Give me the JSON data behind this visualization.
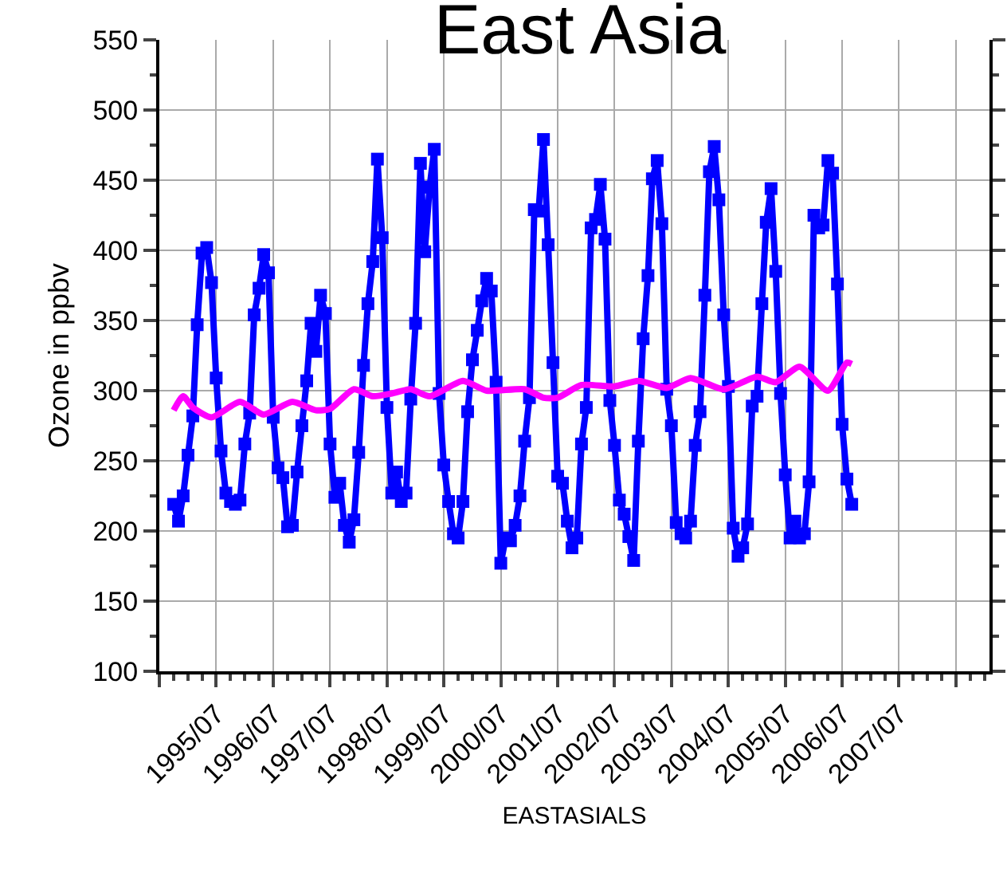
{
  "chart_data": {
    "type": "line",
    "title": "East Asia",
    "xlabel": "EASTASIALS",
    "ylabel": "Ozone in ppbv",
    "xlim": [
      "1994-07",
      "2009-02"
    ],
    "xticks": [
      {
        "value": "1994-07",
        "label": null
      },
      {
        "value": "1995-07",
        "label": "1995/07"
      },
      {
        "value": "1996-07",
        "label": "1996/07"
      },
      {
        "value": "1997-07",
        "label": "1997/07"
      },
      {
        "value": "1998-07",
        "label": "1998/07"
      },
      {
        "value": "1999-07",
        "label": "1999/07"
      },
      {
        "value": "2000-07",
        "label": "2000/07"
      },
      {
        "value": "2001-07",
        "label": "2001/07"
      },
      {
        "value": "2002-07",
        "label": "2002/07"
      },
      {
        "value": "2003-07",
        "label": "2003/07"
      },
      {
        "value": "2004-07",
        "label": "2004/07"
      },
      {
        "value": "2005-07",
        "label": "2005/07"
      },
      {
        "value": "2006-07",
        "label": "2006/07"
      },
      {
        "value": "2007-07",
        "label": "2007/07"
      },
      {
        "value": "2008-07",
        "label": null
      }
    ],
    "ylim": [
      100,
      550
    ],
    "yticks": [
      100,
      150,
      200,
      250,
      300,
      350,
      400,
      450,
      500,
      550
    ],
    "grid": true,
    "line_style": "solid",
    "series": [
      {
        "color": "#0000ff",
        "marker": "square",
        "x": [
          "1994-10",
          "1994-11",
          "1994-12",
          "1995-01",
          "1995-02",
          "1995-03",
          "1995-04",
          "1995-05",
          "1995-06",
          "1995-07",
          "1995-08",
          "1995-09",
          "1995-10",
          "1995-11",
          "1995-12",
          "1996-01",
          "1996-02",
          "1996-03",
          "1996-04",
          "1996-05",
          "1996-06",
          "1996-07",
          "1996-08",
          "1996-09",
          "1996-10",
          "1996-11",
          "1996-12",
          "1997-01",
          "1997-02",
          "1997-03",
          "1997-04",
          "1997-05",
          "1997-06",
          "1997-07",
          "1997-08",
          "1997-09",
          "1997-10",
          "1997-11",
          "1997-12",
          "1998-01",
          "1998-02",
          "1998-03",
          "1998-04",
          "1998-05",
          "1998-06",
          "1998-07",
          "1998-08",
          "1998-09",
          "1998-10",
          "1998-11",
          "1998-12",
          "1999-01",
          "1999-02",
          "1999-03",
          "1999-04",
          "1999-05",
          "1999-06",
          "1999-07",
          "1999-08",
          "1999-09",
          "1999-10",
          "1999-11",
          "1999-12",
          "2000-01",
          "2000-02",
          "2000-03",
          "2000-04",
          "2000-05",
          "2000-06",
          "2000-07",
          "2000-08",
          "2000-09",
          "2000-10",
          "2000-11",
          "2000-12",
          "2001-01",
          "2001-02",
          "2001-03",
          "2001-04",
          "2001-05",
          "2001-06",
          "2001-07",
          "2001-08",
          "2001-09",
          "2001-10",
          "2001-11",
          "2001-12",
          "2002-01",
          "2002-02",
          "2002-03",
          "2002-04",
          "2002-05",
          "2002-06",
          "2002-07",
          "2002-08",
          "2002-09",
          "2002-10",
          "2002-11",
          "2002-12",
          "2003-01",
          "2003-02",
          "2003-03",
          "2003-04",
          "2003-05",
          "2003-06",
          "2003-07",
          "2003-08",
          "2003-09",
          "2003-10",
          "2003-11",
          "2003-12",
          "2004-01",
          "2004-02",
          "2004-03",
          "2004-04",
          "2004-05",
          "2004-06",
          "2004-07",
          "2004-08",
          "2004-09",
          "2004-10",
          "2004-11",
          "2004-12",
          "2005-01",
          "2005-02",
          "2005-03",
          "2005-04",
          "2005-05",
          "2005-06",
          "2005-07",
          "2005-08",
          "2005-09",
          "2005-10",
          "2005-11",
          "2005-12",
          "2006-01",
          "2006-02",
          "2006-03",
          "2006-04",
          "2006-05",
          "2006-06",
          "2006-07",
          "2006-08",
          "2006-09"
        ],
        "values": [
          219,
          207,
          225,
          254,
          282,
          347,
          398,
          402,
          377,
          309,
          257,
          227,
          221,
          219,
          222,
          262,
          284,
          354,
          373,
          397,
          384,
          281,
          245,
          238,
          203,
          204,
          242,
          275,
          307,
          348,
          328,
          368,
          355,
          262,
          224,
          234,
          204,
          192,
          208,
          256,
          318,
          362,
          392,
          465,
          409,
          288,
          227,
          242,
          221,
          227,
          294,
          348,
          462,
          399,
          445,
          472,
          298,
          247,
          221,
          198,
          195,
          221,
          285,
          322,
          343,
          364,
          380,
          371,
          306,
          177,
          195,
          193,
          204,
          225,
          264,
          295,
          429,
          428,
          479,
          404,
          320,
          239,
          234,
          207,
          188,
          195,
          262,
          288,
          416,
          422,
          447,
          408,
          293,
          261,
          222,
          212,
          196,
          179,
          264,
          337,
          382,
          451,
          464,
          419,
          301,
          275,
          206,
          198,
          195,
          207,
          261,
          285,
          368,
          456,
          474,
          436,
          354,
          303,
          202,
          182,
          188,
          205,
          289,
          296,
          362,
          420,
          444,
          385,
          298,
          240,
          195,
          207,
          195,
          198,
          235,
          425,
          416,
          418,
          464,
          455,
          376,
          276,
          237,
          219
        ]
      },
      {
        "color": "#ff00ff",
        "marker": "none",
        "x": [
          "1994-10",
          "1994-12",
          "1995-02",
          "1995-06",
          "1995-12",
          "1996-05",
          "1996-11",
          "1997-04",
          "1997-07",
          "1997-12",
          "1998-04",
          "1998-08",
          "1998-12",
          "1999-04",
          "1999-11",
          "2000-04",
          "2000-12",
          "2001-04",
          "2001-07",
          "2001-12",
          "2002-07",
          "2002-12",
          "2003-06",
          "2003-11",
          "2004-06",
          "2005-01",
          "2005-05",
          "2005-10",
          "2006-04",
          "2006-08",
          "2006-09"
        ],
        "values": [
          286,
          296,
          288,
          281,
          292,
          283,
          292,
          286,
          287,
          301,
          296,
          298,
          301,
          296,
          307,
          300,
          301,
          295,
          295,
          304,
          303,
          307,
          302,
          309,
          301,
          310,
          306,
          317,
          300,
          320,
          319
        ]
      }
    ]
  }
}
